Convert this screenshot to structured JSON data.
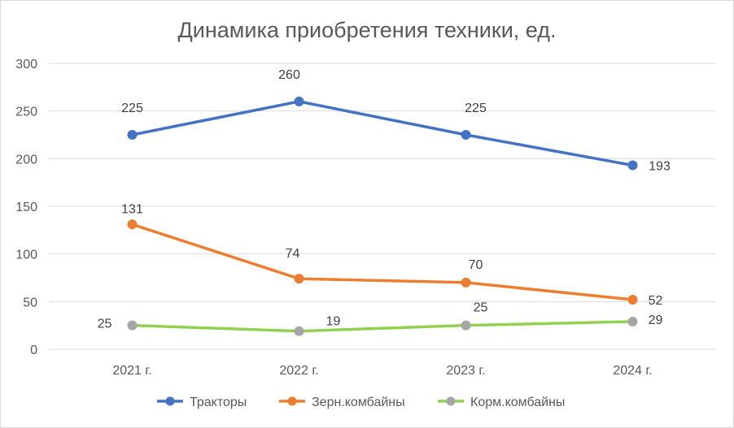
{
  "chart_data": {
    "type": "line",
    "title": "Динамика приобретения техники, ед.",
    "categories": [
      "2021 г.",
      "2022 г.",
      "2023 г.",
      "2024 г."
    ],
    "ylim": [
      0,
      300
    ],
    "yticks": [
      0,
      50,
      100,
      150,
      200,
      250,
      300
    ],
    "grid": true,
    "legend_position": "bottom",
    "series": [
      {
        "name": "Тракторы",
        "color": "#4472c4",
        "values": [
          225,
          260,
          225,
          193
        ]
      },
      {
        "name": "Зерн.комбайны",
        "color": "#ed7d31",
        "values": [
          131,
          74,
          70,
          52
        ]
      },
      {
        "name": "Корм.комбайны",
        "color": "#92d050",
        "marker_color": "#a5a5a5",
        "values": [
          25,
          19,
          25,
          29
        ]
      }
    ]
  }
}
